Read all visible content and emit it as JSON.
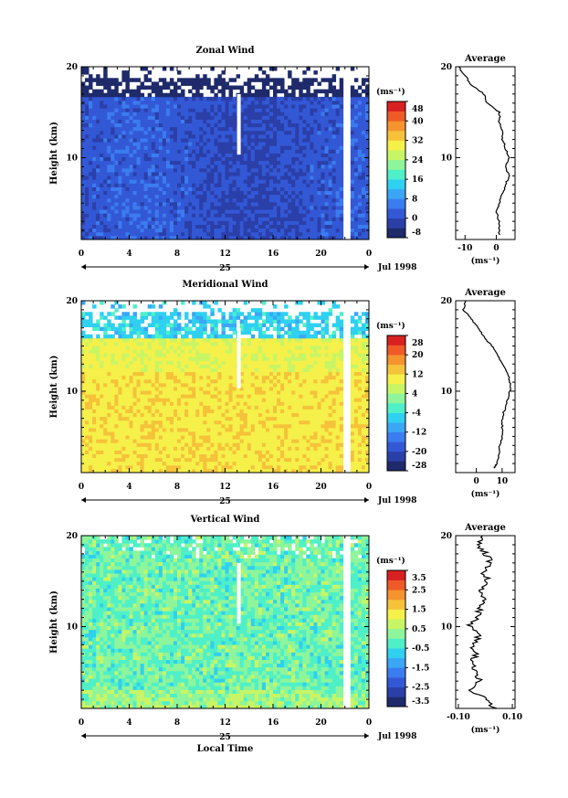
{
  "figure": {
    "xlabel": "Local Time",
    "date_label": "Jul 1998",
    "day_label": "25"
  },
  "chart_data": [
    {
      "type": "heatmap",
      "title": "Zonal Wind",
      "xlabel": "Local Time",
      "ylabel": "Height (km)",
      "x_ticks": [
        "0",
        "4",
        "8",
        "12",
        "16",
        "20",
        "0"
      ],
      "y_ticks": [
        "10",
        "20"
      ],
      "xlim": [
        0,
        24
      ],
      "ylim": [
        1,
        20
      ],
      "colorbar": {
        "unit": "(ms⁻¹)",
        "labels": [
          "48",
          "40",
          "32",
          "24",
          "16",
          "8",
          "0",
          "-8"
        ],
        "range": [
          -8,
          48
        ],
        "colors": [
          "#1f2a6b",
          "#2b3fa8",
          "#3358d6",
          "#3b7cf0",
          "#3aa6f5",
          "#2fd0f0",
          "#4ff0c8",
          "#8ef59a",
          "#c8f565",
          "#f5f04a",
          "#f5c23a",
          "#f5932f",
          "#f05a28",
          "#d92020"
        ]
      },
      "field_note": "mostly -8 to 8 ms⁻¹ below 17 km",
      "average": {
        "title": "Average",
        "unit": "(ms⁻¹)",
        "x_ticks": [
          "-10",
          "0"
        ],
        "y_ticks": [
          "10",
          "20"
        ],
        "xlim": [
          -13,
          6
        ],
        "profile": {
          "height_km": [
            1.5,
            3,
            4,
            5,
            6,
            7,
            8,
            9,
            10,
            11,
            12,
            13,
            14,
            15,
            16,
            17,
            18,
            19,
            20
          ],
          "value": [
            1,
            1,
            0,
            1,
            2,
            3,
            4,
            3,
            4,
            3,
            2,
            2,
            1,
            1,
            -3,
            -4,
            -8,
            -10,
            -12
          ]
        }
      }
    },
    {
      "type": "heatmap",
      "title": "Meridional Wind",
      "xlabel": "Local Time",
      "ylabel": "Height (km)",
      "x_ticks": [
        "0",
        "4",
        "8",
        "12",
        "16",
        "20",
        "0"
      ],
      "y_ticks": [
        "10",
        "20"
      ],
      "xlim": [
        0,
        24
      ],
      "ylim": [
        1,
        20
      ],
      "colorbar": {
        "unit": "(ms⁻¹)",
        "labels": [
          "28",
          "20",
          "12",
          "4",
          "-4",
          "-12",
          "-20",
          "-28"
        ],
        "range": [
          -28,
          28
        ],
        "colors": [
          "#1f2a6b",
          "#2b3fa8",
          "#3358d6",
          "#3b7cf0",
          "#3aa6f5",
          "#2fd0f0",
          "#4ff0c8",
          "#8ef59a",
          "#c8f565",
          "#f5f04a",
          "#f5c23a",
          "#f5932f",
          "#f05a28",
          "#d92020"
        ]
      },
      "field_note": "mostly 4 to 16 ms⁻¹ below 16 km",
      "average": {
        "title": "Average",
        "unit": "(ms⁻¹)",
        "x_ticks": [
          "0",
          "10"
        ],
        "y_ticks": [
          "10",
          "20"
        ],
        "xlim": [
          -8,
          15
        ],
        "profile": {
          "height_km": [
            1.5,
            2,
            3,
            4,
            5,
            6,
            7,
            8,
            9,
            10,
            11,
            12,
            13,
            14,
            15,
            16,
            17,
            18,
            19,
            20
          ],
          "value": [
            7,
            8,
            9,
            9,
            10,
            10,
            10,
            11,
            12,
            13,
            13,
            12,
            10,
            8,
            6,
            3,
            1,
            -2,
            -5,
            -4
          ]
        }
      }
    },
    {
      "type": "heatmap",
      "title": "Vertical Wind",
      "xlabel": "Local Time",
      "ylabel": "Height (km)",
      "x_ticks": [
        "0",
        "4",
        "8",
        "12",
        "16",
        "20",
        "0"
      ],
      "y_ticks": [
        "10",
        "20"
      ],
      "xlim": [
        0,
        24
      ],
      "ylim": [
        1,
        20
      ],
      "colorbar": {
        "unit": "(ms⁻¹)",
        "labels": [
          "3.5",
          "2.5",
          "1.5",
          "0.5",
          "-0.5",
          "-1.5",
          "-2.5",
          "-3.5"
        ],
        "range": [
          -3.5,
          3.5
        ],
        "colors": [
          "#1f2a6b",
          "#2b3fa8",
          "#3358d6",
          "#3b7cf0",
          "#3aa6f5",
          "#2fd0f0",
          "#4ff0c8",
          "#8ef59a",
          "#c8f565",
          "#f5f04a",
          "#f5c23a",
          "#f5932f",
          "#f05a28",
          "#d92020"
        ]
      },
      "field_note": "mostly -0.5 to 0.5 ms⁻¹",
      "average": {
        "title": "Average",
        "unit": "(ms⁻¹)",
        "x_ticks": [
          "-0.10",
          "0.10"
        ],
        "y_ticks": [
          "10",
          "20"
        ],
        "xlim": [
          -0.11,
          0.11
        ],
        "profile": {
          "height_km": [
            1,
            2,
            3,
            4,
            5,
            6,
            7,
            8,
            9,
            10,
            11,
            12,
            13,
            14,
            15,
            16,
            17,
            18,
            19,
            20
          ],
          "value": [
            0.03,
            0.0,
            -0.06,
            -0.02,
            -0.04,
            -0.05,
            -0.03,
            -0.05,
            -0.02,
            -0.06,
            -0.03,
            -0.02,
            0.0,
            -0.02,
            0.01,
            -0.01,
            0.02,
            0.0,
            -0.03,
            -0.01
          ]
        }
      }
    }
  ]
}
